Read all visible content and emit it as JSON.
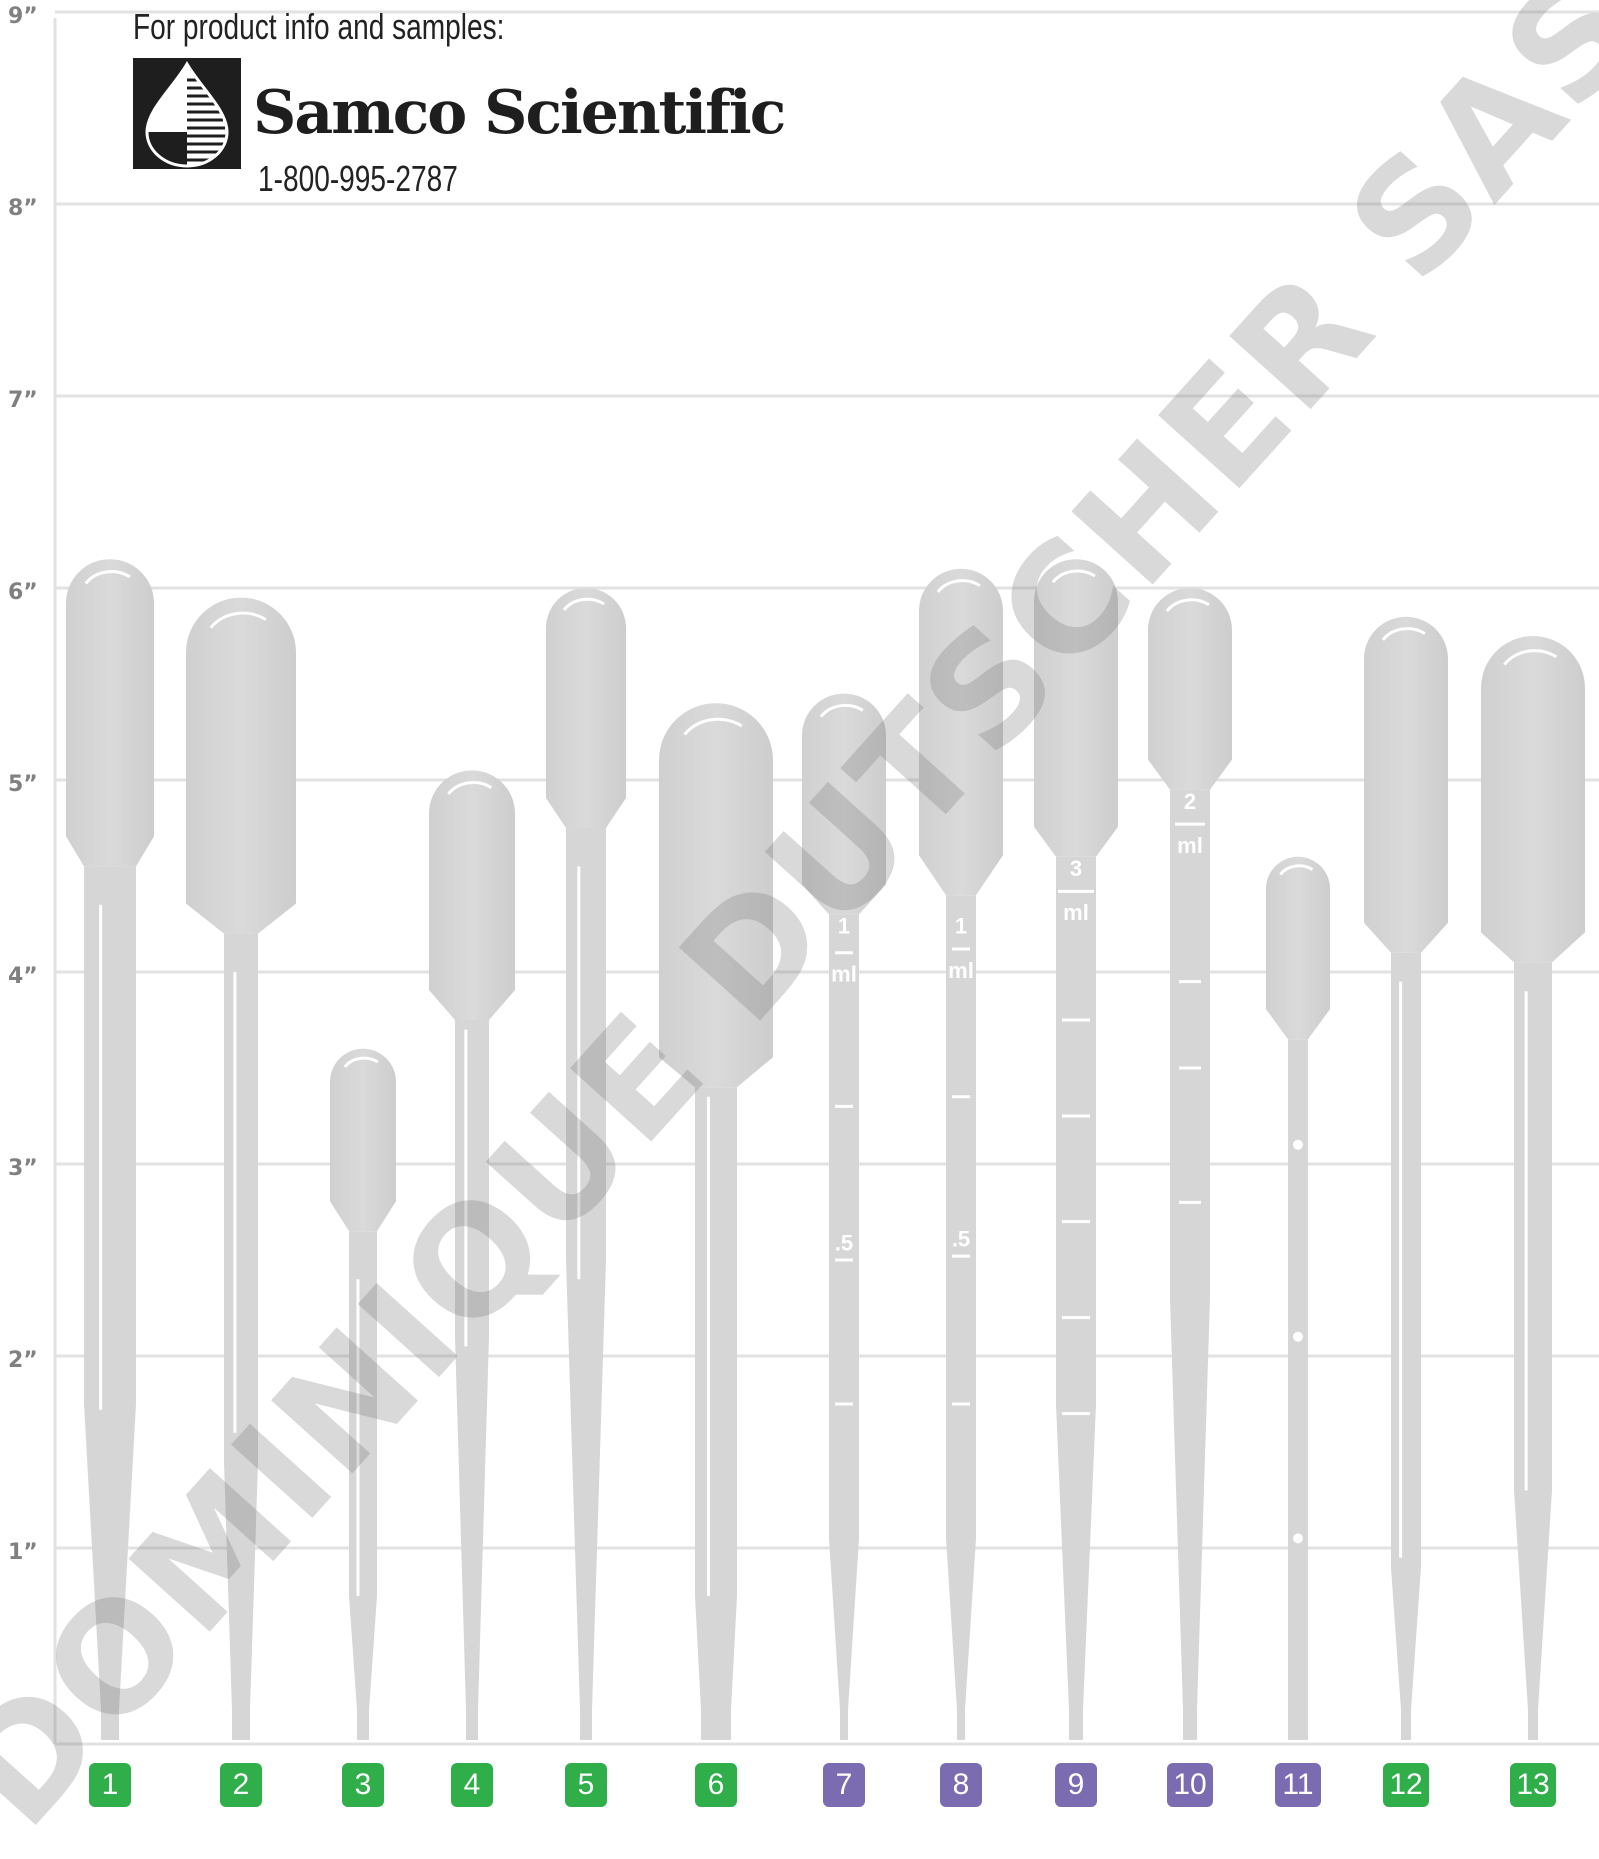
{
  "ruler": {
    "labels": [
      "9”",
      "8”",
      "7”",
      "6”",
      "5”",
      "4”",
      "3”",
      "2”",
      "1”"
    ]
  },
  "header": {
    "info_text": "For product info and samples:",
    "company": "Samco Scientific",
    "phone": "1-800-995-2787"
  },
  "watermark": "DOMINIQUE DUTSCHER SAS",
  "markings": {
    "p7": {
      "top": "1",
      "unit": "ml",
      "half": ".5"
    },
    "p8": {
      "top": "1",
      "unit": "ml",
      "half": ".5"
    },
    "p9": {
      "top": "3",
      "unit": "ml"
    },
    "p10": {
      "top": "2",
      "unit": "ml"
    }
  },
  "colors": {
    "green_badge": "#2fae4a",
    "purple_badge": "#7b6bb1",
    "pipette": "#d6d6d6",
    "grid": "#e2e2e2",
    "axis_label": "#808080"
  },
  "pipettes": [
    {
      "number": "1",
      "color": "green",
      "length_in": 6.15
    },
    {
      "number": "2",
      "color": "green",
      "length_in": 5.95
    },
    {
      "number": "3",
      "color": "green",
      "length_in": 3.6
    },
    {
      "number": "4",
      "color": "green",
      "length_in": 5.05
    },
    {
      "number": "5",
      "color": "green",
      "length_in": 6.0
    },
    {
      "number": "6",
      "color": "green",
      "length_in": 5.4
    },
    {
      "number": "7",
      "color": "purple",
      "length_in": 5.45
    },
    {
      "number": "8",
      "color": "purple",
      "length_in": 6.1
    },
    {
      "number": "9",
      "color": "purple",
      "length_in": 6.15
    },
    {
      "number": "10",
      "color": "purple",
      "length_in": 6.0
    },
    {
      "number": "11",
      "color": "purple",
      "length_in": 4.6
    },
    {
      "number": "12",
      "color": "green",
      "length_in": 5.85
    },
    {
      "number": "13",
      "color": "green",
      "length_in": 5.75
    }
  ]
}
